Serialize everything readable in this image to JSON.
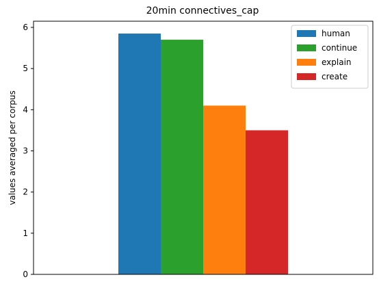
{
  "chart_data": {
    "type": "bar",
    "title": "20min connectives_cap",
    "xlabel": "",
    "ylabel": "values averaged per corpus",
    "categories": [
      ""
    ],
    "series": [
      {
        "name": "human",
        "values": [
          5.85
        ],
        "color": "#1f77b4"
      },
      {
        "name": "continue",
        "values": [
          5.7
        ],
        "color": "#2ca02c"
      },
      {
        "name": "explain",
        "values": [
          4.1
        ],
        "color": "#ff7f0e"
      },
      {
        "name": "create",
        "values": [
          3.5
        ],
        "color": "#d62728"
      }
    ],
    "ylim": [
      0,
      6.15
    ],
    "yticks": [
      0,
      1,
      2,
      3,
      4,
      5,
      6
    ],
    "grid": false,
    "legend": "top-right"
  }
}
